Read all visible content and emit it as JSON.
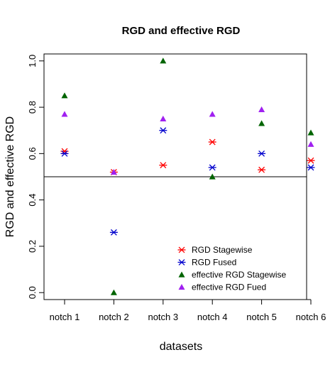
{
  "chart_data": {
    "type": "scatter",
    "title": "RGD and effective RGD",
    "xlabel": "datasets",
    "ylabel": "RGD and effective RGD",
    "categories": [
      "notch 1",
      "notch 2",
      "notch 3",
      "notch 4",
      "notch 5",
      "notch 6"
    ],
    "ylim": [
      -0.03,
      1.03
    ],
    "yticks": [
      "0.0",
      "0.2",
      "0.4",
      "0.6",
      "0.8",
      "1.0"
    ],
    "reference_line": 0.5,
    "grid": false,
    "legend_position": "bottom-right",
    "series": [
      {
        "name": "RGD Stagewise",
        "marker": "asterisk",
        "color": "#ff0000",
        "values": [
          0.61,
          0.52,
          0.55,
          0.65,
          0.53,
          0.57
        ]
      },
      {
        "name": "RGD Fused",
        "marker": "asterisk",
        "color": "#0000cd",
        "values": [
          0.6,
          0.26,
          0.7,
          0.54,
          0.6,
          0.54
        ]
      },
      {
        "name": "effective RGD Stagewise",
        "marker": "triangle",
        "color": "#006400",
        "values": [
          0.85,
          0.0,
          1.0,
          0.5,
          0.73,
          0.69
        ]
      },
      {
        "name": "effective RGD Fued",
        "marker": "triangle",
        "color": "#a020f0",
        "values": [
          0.77,
          0.52,
          0.75,
          0.77,
          0.79,
          0.64
        ]
      }
    ]
  }
}
